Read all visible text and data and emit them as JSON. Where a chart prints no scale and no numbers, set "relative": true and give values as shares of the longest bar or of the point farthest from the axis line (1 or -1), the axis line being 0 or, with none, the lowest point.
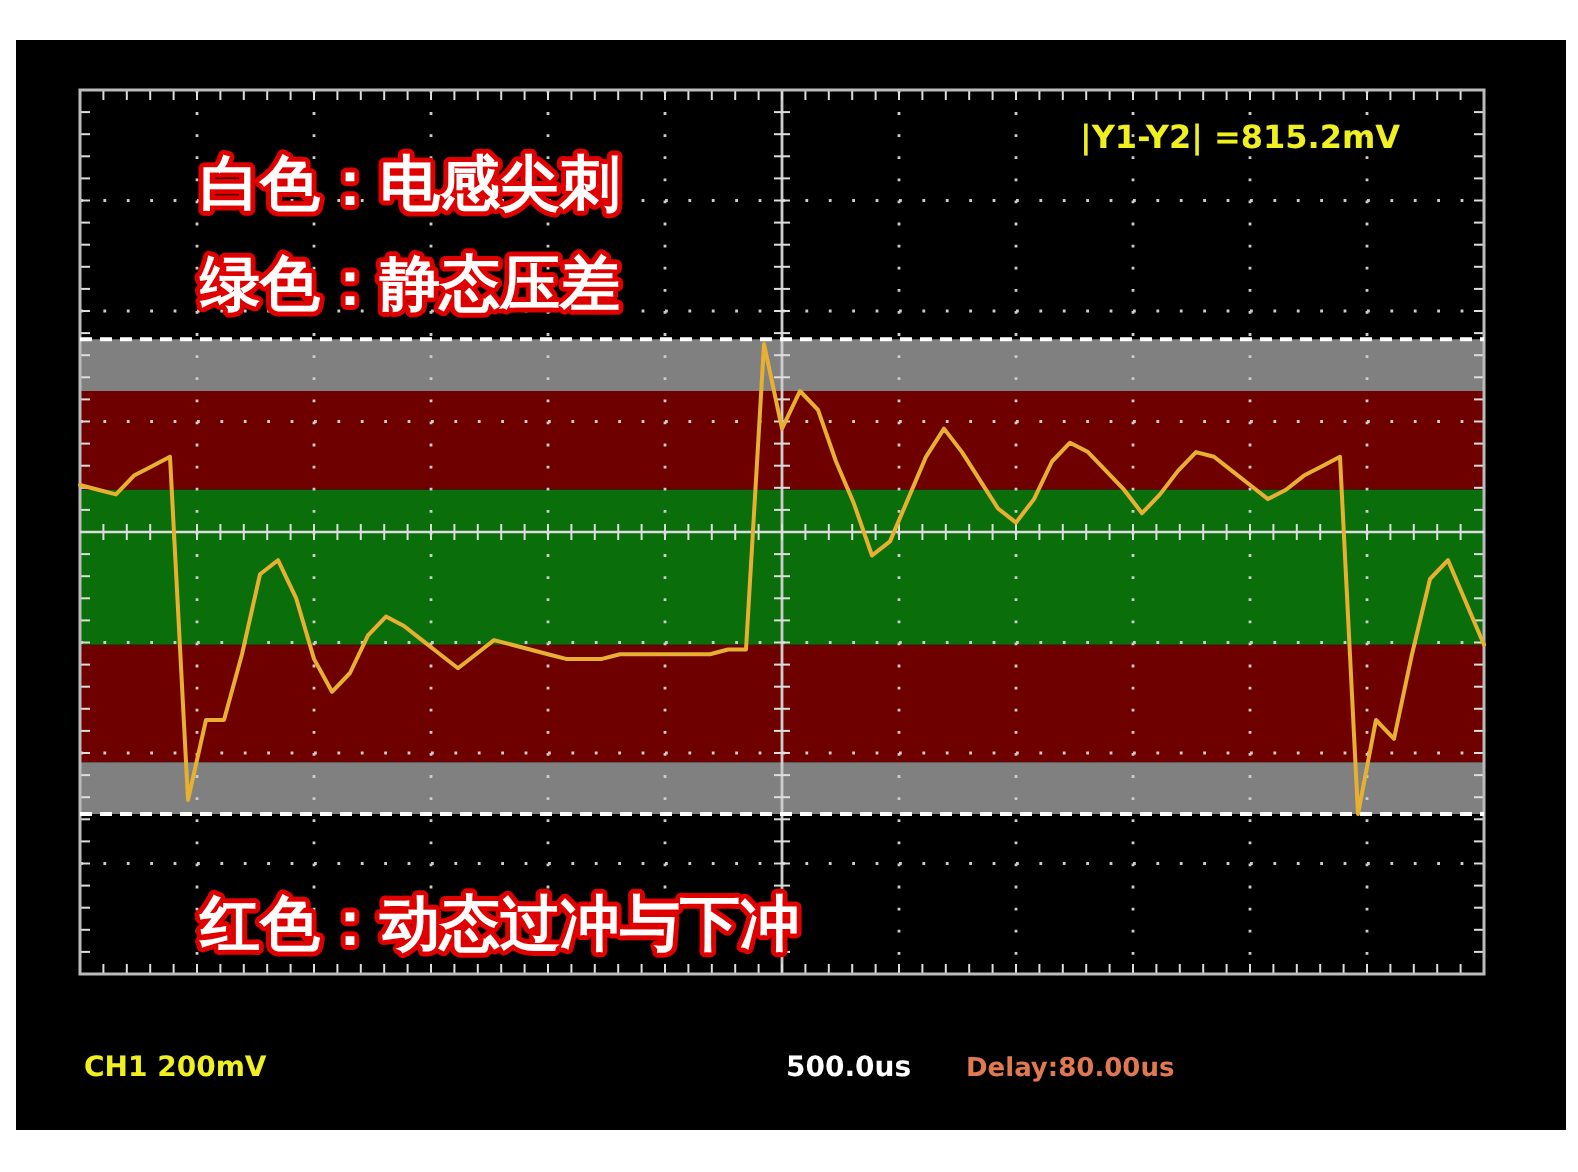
{
  "chart_data": {
    "type": "line",
    "relative": true,
    "categories": [
      null,
      null,
      null,
      null,
      null,
      null,
      null,
      null,
      null,
      null,
      null,
      null,
      null,
      null,
      null,
      null,
      null,
      null,
      null,
      null,
      null,
      null,
      null,
      null,
      null,
      null,
      null,
      null,
      null,
      null,
      null,
      null,
      null,
      null,
      null,
      null,
      null,
      null,
      null,
      null,
      null,
      null,
      null,
      null,
      null,
      null,
      null,
      null,
      null,
      null,
      null,
      null,
      null,
      null,
      null,
      null,
      null,
      null,
      null,
      null,
      null,
      null,
      null,
      null,
      null,
      null,
      null,
      null,
      null,
      null,
      null,
      null,
      null,
      null,
      null,
      null,
      null,
      null,
      null
    ],
    "series": [
      {
        "color": "#e8b030",
        "values": [
          0.7,
          0.69,
          0.68,
          0.72,
          0.74,
          0.76,
          0.03,
          0.2,
          0.2,
          0.34,
          0.51,
          0.54,
          0.46,
          0.33,
          0.26,
          0.3,
          0.38,
          0.42,
          0.4,
          0.37,
          0.34,
          0.31,
          0.34,
          0.37,
          0.36,
          0.35,
          0.34,
          0.33,
          0.33,
          0.33,
          0.34,
          0.34,
          0.34,
          0.34,
          0.34,
          0.34,
          0.35,
          0.35,
          1,
          0.82,
          0.9,
          0.86,
          0.75,
          0.66,
          0.55,
          0.58,
          0.67,
          0.76,
          0.82,
          0.77,
          0.71,
          0.65,
          0.62,
          0.67,
          0.75,
          0.79,
          0.77,
          0.73,
          0.69,
          0.64,
          0.68,
          0.73,
          0.77,
          0.76,
          0.73,
          0.7,
          0.67,
          0.69,
          0.72,
          0.74,
          0.76,
          0,
          0.2,
          0.16,
          0.34,
          0.5,
          0.54,
          0.45,
          0.36
        ]
      }
    ],
    "bands": [
      {
        "axis": "y",
        "from": 0.9,
        "to": 1.01,
        "color": "#808080"
      },
      {
        "axis": "y",
        "from": 0.69,
        "to": 0.9,
        "color": "#6e0000"
      },
      {
        "axis": "y",
        "from": 0.36,
        "to": 0.69,
        "color": "#0a6e0a"
      },
      {
        "axis": "y",
        "from": 0.11,
        "to": 0.36,
        "color": "#6e0000"
      },
      {
        "axis": "y",
        "from": 0,
        "to": 0.11,
        "color": "#808080"
      }
    ],
    "ref_lines": [
      {
        "axis": "y",
        "value": 1.01,
        "color": "#ffffff",
        "line_style": "dashed"
      },
      {
        "axis": "y",
        "value": 0,
        "color": "#ffffff",
        "line_style": "dashed"
      },
      {
        "axis": "y",
        "value": 0.6,
        "color": "#dddddd",
        "line_style": "solid"
      }
    ],
    "grid": true,
    "line_style": "solid",
    "annotations": [
      "白色：电感尖刺",
      "绿色：静态压差",
      "红色：动态过冲与下冲",
      "|Y1-Y2|  =815.2mV",
      "CH1 200mV",
      "500.0us",
      "Delay:80.00us"
    ]
  }
}
